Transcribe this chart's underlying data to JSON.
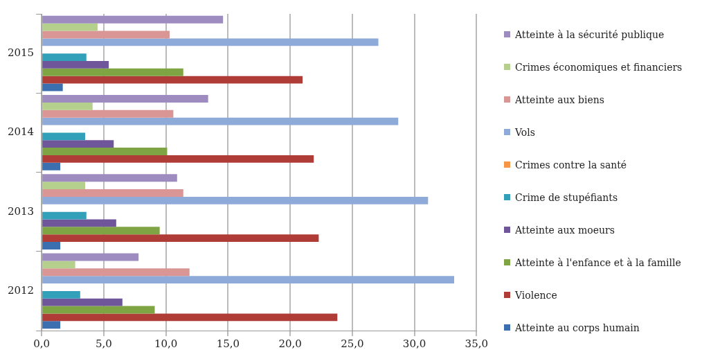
{
  "chart_data": {
    "type": "bar",
    "orientation": "horizontal",
    "categories": [
      "2015",
      "2014",
      "2013",
      "2012"
    ],
    "series": [
      {
        "name": "Atteinte à la sécurité publique",
        "color": "#9e8bc0",
        "values": [
          14.6,
          13.4,
          10.9,
          7.8
        ]
      },
      {
        "name": "Crimes économiques et financiers",
        "color": "#b5cf8c",
        "values": [
          4.5,
          4.1,
          3.5,
          2.7
        ]
      },
      {
        "name": "Atteinte aux biens",
        "color": "#d99694",
        "values": [
          10.3,
          10.6,
          11.4,
          11.9
        ]
      },
      {
        "name": "Vols",
        "color": "#8eaad8",
        "values": [
          27.1,
          28.7,
          31.1,
          33.2
        ]
      },
      {
        "name": "Crimes contre la santé",
        "color": "#f79646",
        "values": [
          0,
          0,
          0,
          0
        ]
      },
      {
        "name": "Crime de stupéfiants",
        "color": "#31a0b8",
        "values": [
          3.6,
          3.5,
          3.6,
          3.1
        ]
      },
      {
        "name": "Atteinte aux moeurs",
        "color": "#6f559a",
        "values": [
          5.4,
          5.8,
          6.0,
          6.5
        ]
      },
      {
        "name": "Atteinte à l'enfance et à la famille",
        "color": "#7fa443",
        "values": [
          11.4,
          10.1,
          9.5,
          9.1
        ]
      },
      {
        "name": "Violence",
        "color": "#b03c38",
        "values": [
          21.0,
          21.9,
          22.3,
          23.8
        ]
      },
      {
        "name": "Atteinte au corps humain",
        "color": "#3c6fb0",
        "values": [
          1.7,
          1.5,
          1.5,
          1.5
        ]
      }
    ],
    "xlim": [
      0,
      35
    ],
    "xticks": [
      {
        "value": 0,
        "label": "0,0"
      },
      {
        "value": 5,
        "label": "5,0"
      },
      {
        "value": 10,
        "label": "10,0"
      },
      {
        "value": 15,
        "label": "15,0"
      },
      {
        "value": 20,
        "label": "20,0"
      },
      {
        "value": 25,
        "label": "25,0"
      },
      {
        "value": 30,
        "label": "30,0"
      },
      {
        "value": 35,
        "label": "35,0"
      }
    ],
    "grid": "x",
    "legend": "right"
  }
}
